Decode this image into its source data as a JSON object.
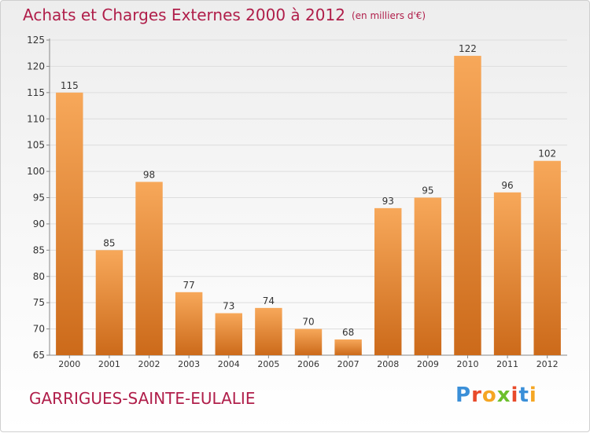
{
  "header": {
    "title": "Achats et Charges Externes 2000 à 2012",
    "subtitle": "(en milliers d'€)"
  },
  "footer": {
    "commune": "GARRIGUES-SAINTE-EULALIE",
    "logo_letters": [
      {
        "ch": "P",
        "color": "#3a8fd8"
      },
      {
        "ch": "r",
        "color": "#e84a2a"
      },
      {
        "ch": "o",
        "color": "#f5a623"
      },
      {
        "ch": "x",
        "color": "#6cbf2c"
      },
      {
        "ch": "i",
        "color": "#e84a2a"
      },
      {
        "ch": "t",
        "color": "#3a8fd8"
      },
      {
        "ch": "i",
        "color": "#f5a623"
      }
    ]
  },
  "chart_data": {
    "type": "bar",
    "categories": [
      "2000",
      "2001",
      "2002",
      "2003",
      "2004",
      "2005",
      "2006",
      "2007",
      "2008",
      "2009",
      "2010",
      "2011",
      "2012"
    ],
    "values": [
      115,
      85,
      98,
      77,
      73,
      74,
      70,
      68,
      93,
      95,
      122,
      96,
      102
    ],
    "ylim": [
      65,
      125
    ],
    "yticks": [
      65,
      70,
      75,
      80,
      85,
      90,
      95,
      100,
      105,
      110,
      115,
      120,
      125
    ],
    "grid": true,
    "bar_color_top": "#f7a85a",
    "bar_color_bottom": "#cc6a1a",
    "label_color": "#333333"
  }
}
